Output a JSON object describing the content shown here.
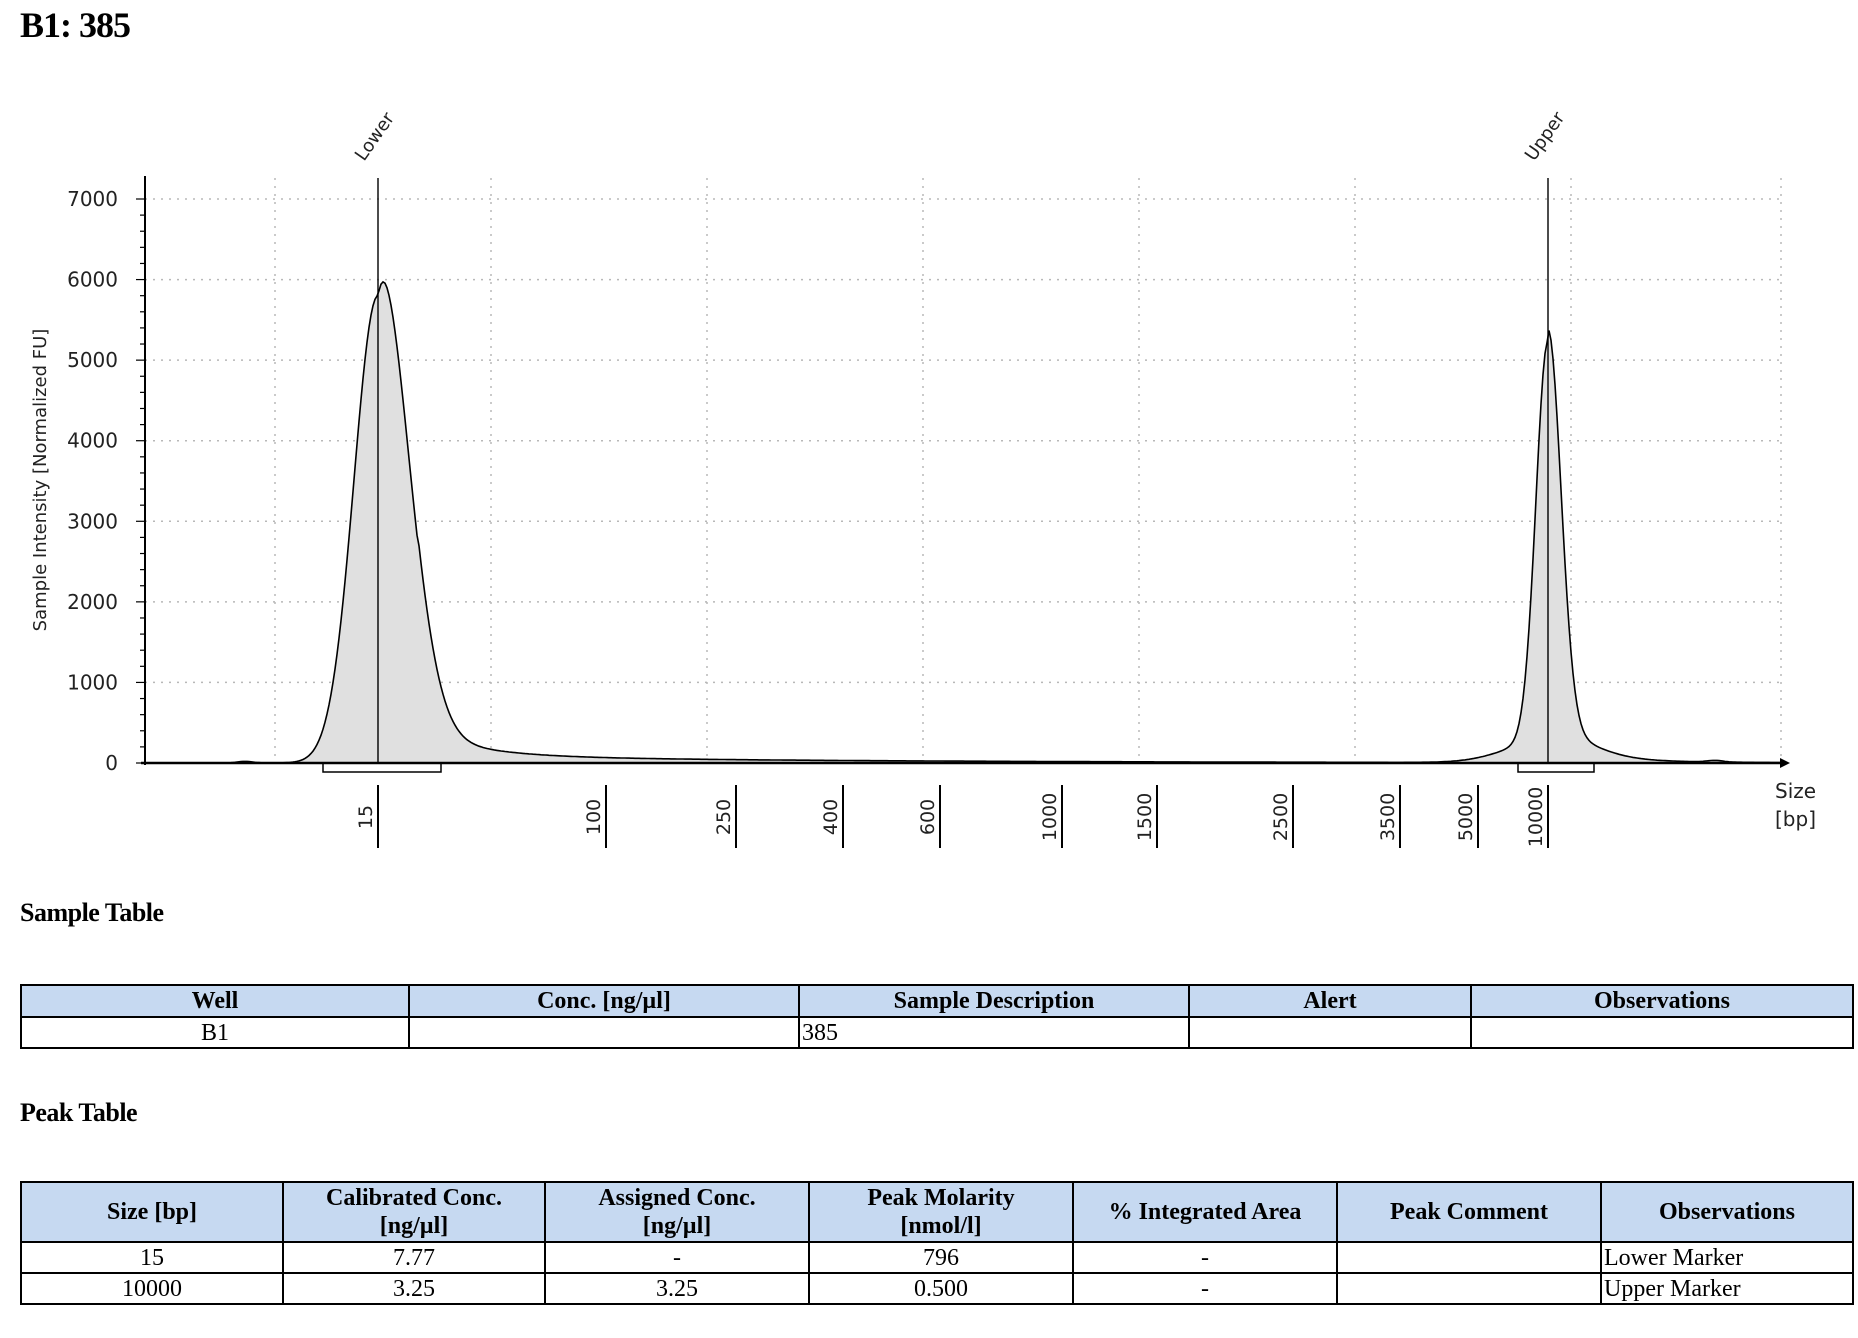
{
  "title": "B1: 385",
  "chart_data": {
    "type": "area",
    "ylabel": "Sample Intensity [Normalized FU]",
    "xlabel": "Size [bp]",
    "xlabel_lines": [
      "Size",
      "[bp]"
    ],
    "ylim": [
      0,
      7000
    ],
    "yticks": [
      "0",
      "1000",
      "2000",
      "3000",
      "4000",
      "5000",
      "6000",
      "7000"
    ],
    "xticks": [
      "15",
      "100",
      "250",
      "400",
      "600",
      "1000",
      "1500",
      "2500",
      "3500",
      "5000",
      "10000"
    ],
    "grid": true,
    "peaks": [
      {
        "label": "Lower",
        "size_bp": 15,
        "height": 5800
      },
      {
        "label": "Upper",
        "size_bp": 10000,
        "height": 4950
      }
    ],
    "series": [
      {
        "x": [
          "15",
          "100",
          "250",
          "400",
          "600",
          "1000",
          "1500",
          "2500",
          "3500",
          "5000",
          "10000"
        ],
        "values": [
          5800,
          80,
          40,
          25,
          10,
          8,
          5,
          5,
          10,
          100,
          4950
        ]
      }
    ],
    "colors": {
      "fill": "#e0e0e0",
      "line": "#000000",
      "grid": "#b8b8b8"
    }
  },
  "sample_section": {
    "title": "Sample Table"
  },
  "sample_table": {
    "headers": [
      "Well",
      "Conc. [ng/µl]",
      "Sample Description",
      "Alert",
      "Observations"
    ],
    "row": {
      "well": "B1",
      "conc": "",
      "description": "385",
      "alert": "",
      "observations": ""
    }
  },
  "peak_section": {
    "title": "Peak Table"
  },
  "peak_table": {
    "headers": {
      "size": "Size [bp]",
      "cal_conc_1": "Calibrated Conc.",
      "cal_conc_2": "[ng/µl]",
      "assigned_1": "Assigned Conc.",
      "assigned_2": "[ng/µl]",
      "molarity_1": "Peak Molarity",
      "molarity_2": "[nmol/l]",
      "area": "% Integrated Area",
      "comment": "Peak Comment",
      "observations": "Observations"
    },
    "rows": [
      {
        "size": "15",
        "cal": "7.77",
        "assigned": "-",
        "molarity": "796",
        "area": "-",
        "comment": "",
        "obs": "Lower Marker"
      },
      {
        "size": "10000",
        "cal": "3.25",
        "assigned": "3.25",
        "molarity": "0.500",
        "area": "-",
        "comment": "",
        "obs": "Upper Marker"
      }
    ]
  }
}
